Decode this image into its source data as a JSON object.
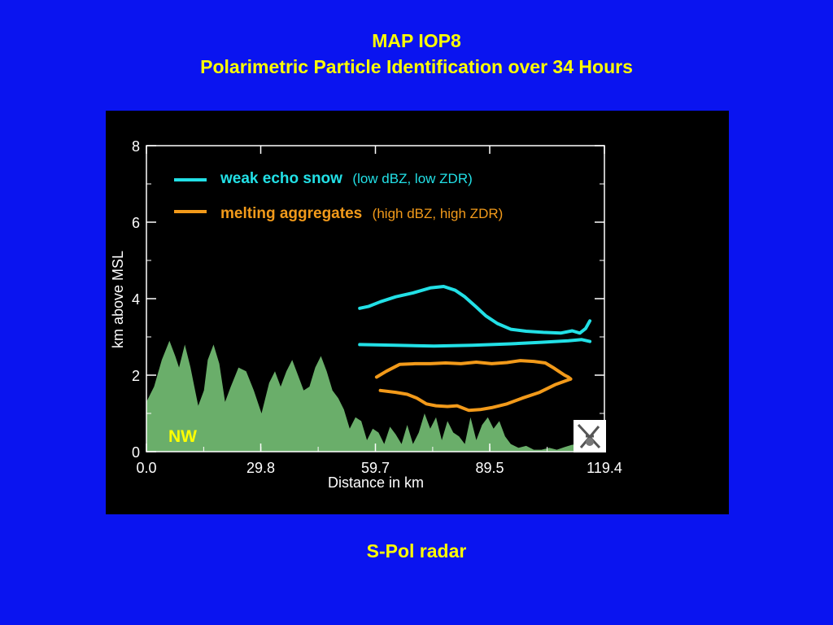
{
  "slide": {
    "title_line1": "MAP IOP8",
    "title_line2": "Polarimetric Particle Identification over 34 Hours",
    "caption": "S-Pol radar"
  },
  "colors": {
    "background": "#0a14f0",
    "title_text": "#ffff00",
    "terrain_fill": "#6aae6a",
    "weak_echo_snow": "#22e0e6",
    "melting_aggregates": "#f29a1a"
  },
  "chart_data": {
    "type": "line",
    "xlabel": "Distance in km",
    "ylabel": "km above MSL",
    "xlim": [
      0,
      119.4
    ],
    "ylim": [
      0,
      8
    ],
    "x_ticks": [
      "0.0",
      "29.8",
      "59.7",
      "89.5",
      "119.4"
    ],
    "y_ticks": [
      "0",
      "2",
      "4",
      "6",
      "8"
    ],
    "direction_label": "NW",
    "legend": [
      {
        "name": "weak echo snow",
        "detail": "(low dBZ, low ZDR)",
        "color": "#22e0e6"
      },
      {
        "name": "melting aggregates",
        "detail": "(high dBZ, high ZDR)",
        "color": "#f29a1a"
      }
    ],
    "series": [
      {
        "name": "weak echo snow",
        "part": "upper boundary",
        "x": [
          55.6,
          58.0,
          61.0,
          65.0,
          69.5,
          74.0,
          77.5,
          80.5,
          83.0,
          86.0,
          88.5,
          91.5,
          95.0,
          99.0,
          103.5,
          108.0,
          111.0,
          113.0,
          114.5,
          115.6
        ],
        "y": [
          3.75,
          3.8,
          3.92,
          4.05,
          4.15,
          4.28,
          4.32,
          4.22,
          4.05,
          3.78,
          3.55,
          3.35,
          3.2,
          3.15,
          3.12,
          3.1,
          3.16,
          3.1,
          3.22,
          3.42
        ]
      },
      {
        "name": "weak echo snow",
        "part": "lower boundary",
        "x": [
          55.6,
          65.0,
          75.0,
          85.0,
          95.0,
          103.0,
          110.0,
          113.5,
          115.6
        ],
        "y": [
          2.8,
          2.78,
          2.76,
          2.78,
          2.82,
          2.86,
          2.9,
          2.93,
          2.88
        ]
      },
      {
        "name": "melting aggregates",
        "part": "upper boundary",
        "x": [
          60.0,
          62.5,
          66.0,
          70.0,
          74.0,
          78.0,
          82.0,
          86.0,
          90.0,
          94.0,
          97.5,
          101.0,
          104.0,
          106.0,
          107.5,
          109.0,
          110.0,
          110.6
        ],
        "y": [
          1.95,
          2.1,
          2.28,
          2.3,
          2.3,
          2.32,
          2.3,
          2.34,
          2.3,
          2.33,
          2.38,
          2.36,
          2.32,
          2.2,
          2.1,
          2.0,
          1.95,
          1.9
        ]
      },
      {
        "name": "melting aggregates",
        "part": "lower boundary",
        "x": [
          61.0,
          65.0,
          68.0,
          70.5,
          73.0,
          75.5,
          78.5,
          81.0,
          84.0,
          87.0,
          90.0,
          94.0,
          98.0,
          102.5,
          106.5,
          110.6
        ],
        "y": [
          1.6,
          1.55,
          1.5,
          1.4,
          1.25,
          1.2,
          1.18,
          1.2,
          1.08,
          1.1,
          1.15,
          1.25,
          1.4,
          1.55,
          1.75,
          1.9
        ]
      }
    ],
    "terrain": {
      "name": "terrain",
      "x": [
        0,
        2,
        4,
        6,
        7.5,
        8.5,
        10,
        11.5,
        12.5,
        13.5,
        15,
        16,
        17.5,
        19,
        20.5,
        22,
        24,
        26,
        28,
        30,
        32,
        33.5,
        35,
        36.5,
        38,
        39.5,
        41,
        42.5,
        44,
        45.5,
        47,
        48.5,
        50,
        51.5,
        53,
        54.5,
        56,
        57.5,
        59,
        60.5,
        62,
        63.5,
        65,
        66.5,
        68,
        69.5,
        71,
        72.5,
        74,
        75.5,
        77,
        78.5,
        80,
        81.5,
        83,
        84.5,
        86,
        87.5,
        89,
        90.5,
        92,
        93.5,
        95,
        97,
        99,
        101,
        103,
        105,
        107,
        109,
        111,
        113,
        115.6
      ],
      "y": [
        1.3,
        1.7,
        2.4,
        2.9,
        2.5,
        2.2,
        2.8,
        2.2,
        1.7,
        1.2,
        1.6,
        2.4,
        2.8,
        2.3,
        1.3,
        1.7,
        2.2,
        2.1,
        1.6,
        1.0,
        1.8,
        2.1,
        1.7,
        2.1,
        2.4,
        2.0,
        1.6,
        1.7,
        2.2,
        2.5,
        2.1,
        1.6,
        1.4,
        1.1,
        0.6,
        0.9,
        0.8,
        0.3,
        0.6,
        0.5,
        0.2,
        0.65,
        0.45,
        0.2,
        0.7,
        0.2,
        0.5,
        1.0,
        0.6,
        0.9,
        0.3,
        0.8,
        0.5,
        0.4,
        0.2,
        0.9,
        0.3,
        0.7,
        0.9,
        0.6,
        0.8,
        0.4,
        0.2,
        0.1,
        0.15,
        0.05,
        0.05,
        0.1,
        0.05,
        0.12,
        0.18,
        0.2,
        0.2
      ]
    }
  }
}
